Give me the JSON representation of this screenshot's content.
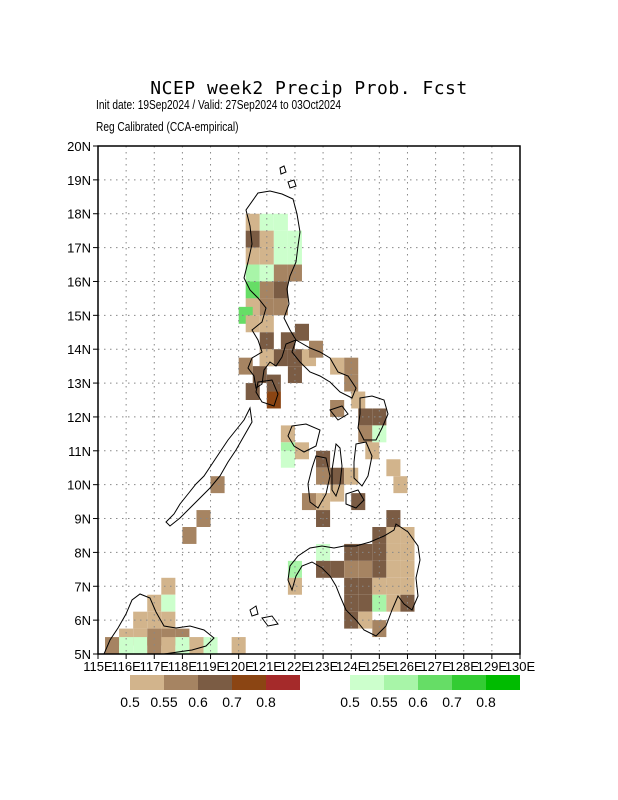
{
  "header": {
    "title": "NCEP week2 Precip Prob. Fcst",
    "subtitle1": "Init date: 19Sep2024 / Valid: 27Sep2024 to 03Oct2024",
    "subtitle2": "Reg Calibrated (CCA-empirical)"
  },
  "map": {
    "lon_range": [
      115,
      130
    ],
    "lat_range": [
      5,
      20
    ],
    "grid_step_deg": 1,
    "grid": "dotted",
    "y_ticks": [
      "5N",
      "6N",
      "7N",
      "8N",
      "9N",
      "10N",
      "11N",
      "12N",
      "13N",
      "14N",
      "15N",
      "16N",
      "17N",
      "18N",
      "19N",
      "20N"
    ],
    "x_ticks": [
      "115E",
      "116E",
      "117E",
      "118E",
      "119E",
      "120E",
      "121E",
      "122E",
      "123E",
      "124E",
      "125E",
      "126E",
      "127E",
      "128E",
      "129E",
      "130E"
    ]
  },
  "legend": {
    "dry": {
      "colors": [
        "#d2b48c",
        "#a68462",
        "#7b5c44",
        "#8b4513",
        "#a52a2a"
      ],
      "labels": [
        "0.5",
        "0.55",
        "0.6",
        "0.7",
        "0.8"
      ]
    },
    "wet": {
      "colors": [
        "#ccffcc",
        "#a8f5a8",
        "#66dd66",
        "#33cc33",
        "#00bb00"
      ],
      "labels": [
        "0.5",
        "0.55",
        "0.6",
        "0.7",
        "0.8"
      ]
    }
  },
  "cells": [
    {
      "lon": 120.5,
      "lat": 17.75,
      "c": "#d2b48c"
    },
    {
      "lon": 120.5,
      "lat": 17.25,
      "c": "#7b5c44"
    },
    {
      "lon": 120.5,
      "lat": 16.75,
      "c": "#d2b48c"
    },
    {
      "lon": 120.5,
      "lat": 16.25,
      "c": "#a8f5a8"
    },
    {
      "lon": 120.5,
      "lat": 15.75,
      "c": "#66dd66"
    },
    {
      "lon": 120.5,
      "lat": 15.25,
      "c": "#d2b48c"
    },
    {
      "lon": 120.25,
      "lat": 15.0,
      "c": "#66dd66"
    },
    {
      "lon": 120.5,
      "lat": 14.75,
      "c": "#d2b48c"
    },
    {
      "lon": 121.0,
      "lat": 17.75,
      "c": "#ccffcc"
    },
    {
      "lon": 121.0,
      "lat": 17.25,
      "c": "#d2b48c"
    },
    {
      "lon": 121.0,
      "lat": 16.75,
      "c": "#d2b48c"
    },
    {
      "lon": 121.0,
      "lat": 16.25,
      "c": "#ccffcc"
    },
    {
      "lon": 121.0,
      "lat": 15.75,
      "c": "#a68462"
    },
    {
      "lon": 121.0,
      "lat": 15.25,
      "c": "#a68462"
    },
    {
      "lon": 121.0,
      "lat": 14.75,
      "c": "#d2b48c"
    },
    {
      "lon": 121.0,
      "lat": 14.25,
      "c": "#7b5c44"
    },
    {
      "lon": 121.5,
      "lat": 17.75,
      "c": "#ccffcc"
    },
    {
      "lon": 121.5,
      "lat": 17.25,
      "c": "#ccffcc"
    },
    {
      "lon": 121.5,
      "lat": 16.75,
      "c": "#ccffcc"
    },
    {
      "lon": 121.5,
      "lat": 16.25,
      "c": "#a68462"
    },
    {
      "lon": 121.5,
      "lat": 15.75,
      "c": "#7b5c44"
    },
    {
      "lon": 121.5,
      "lat": 15.25,
      "c": "#a68462"
    },
    {
      "lon": 122.0,
      "lat": 17.25,
      "c": "#ccffcc"
    },
    {
      "lon": 122.0,
      "lat": 16.75,
      "c": "#ccffcc"
    },
    {
      "lon": 122.0,
      "lat": 16.25,
      "c": "#a68462"
    },
    {
      "lon": 121.0,
      "lat": 13.75,
      "c": "#7b5c44"
    },
    {
      "lon": 121.5,
      "lat": 13.75,
      "c": "#7b5c44"
    },
    {
      "lon": 122.0,
      "lat": 13.75,
      "c": "#7b5c44"
    },
    {
      "lon": 121.75,
      "lat": 14.25,
      "c": "#7b5c44"
    },
    {
      "lon": 122.25,
      "lat": 14.5,
      "c": "#7b5c44"
    },
    {
      "lon": 120.25,
      "lat": 13.5,
      "c": "#a68462"
    },
    {
      "lon": 120.75,
      "lat": 13.25,
      "c": "#7b5c44"
    },
    {
      "lon": 120.5,
      "lat": 12.75,
      "c": "#7b5c44"
    },
    {
      "lon": 121.25,
      "lat": 13.0,
      "c": "#7b5c44"
    },
    {
      "lon": 121.25,
      "lat": 12.5,
      "c": "#8b4513"
    },
    {
      "lon": 121.0,
      "lat": 13.75,
      "c": "#d2b48c"
    },
    {
      "lon": 122.0,
      "lat": 13.25,
      "c": "#7b5c44"
    },
    {
      "lon": 122.5,
      "lat": 13.75,
      "c": "#d2b48c"
    },
    {
      "lon": 122.75,
      "lat": 14.0,
      "c": "#a68462"
    },
    {
      "lon": 123.5,
      "lat": 13.5,
      "c": "#d2b48c"
    },
    {
      "lon": 124.0,
      "lat": 13.5,
      "c": "#a68462"
    },
    {
      "lon": 124.0,
      "lat": 13.0,
      "c": "#a68462"
    },
    {
      "lon": 123.5,
      "lat": 12.25,
      "c": "#a68462"
    },
    {
      "lon": 124.25,
      "lat": 12.5,
      "c": "#d2b48c"
    },
    {
      "lon": 124.5,
      "lat": 12.0,
      "c": "#7b5c44"
    },
    {
      "lon": 125.0,
      "lat": 12.0,
      "c": "#7b5c44"
    },
    {
      "lon": 124.5,
      "lat": 11.5,
      "c": "#a68462"
    },
    {
      "lon": 125.0,
      "lat": 11.5,
      "c": "#ccffcc"
    },
    {
      "lon": 124.75,
      "lat": 11.0,
      "c": "#d2b48c"
    },
    {
      "lon": 121.75,
      "lat": 11.5,
      "c": "#d2b48c"
    },
    {
      "lon": 121.75,
      "lat": 11.0,
      "c": "#a8f5a8"
    },
    {
      "lon": 122.25,
      "lat": 11.0,
      "c": "#d2b48c"
    },
    {
      "lon": 121.75,
      "lat": 10.75,
      "c": "#ccffcc"
    },
    {
      "lon": 123.0,
      "lat": 10.75,
      "c": "#7b5c44"
    },
    {
      "lon": 123.5,
      "lat": 10.25,
      "c": "#7b5c44"
    },
    {
      "lon": 123.0,
      "lat": 10.25,
      "c": "#a68462"
    },
    {
      "lon": 124.0,
      "lat": 10.25,
      "c": "#d2b48c"
    },
    {
      "lon": 122.5,
      "lat": 9.5,
      "c": "#a68462"
    },
    {
      "lon": 123.0,
      "lat": 9.5,
      "c": "#d2b48c"
    },
    {
      "lon": 123.5,
      "lat": 9.75,
      "c": "#d2b48c"
    },
    {
      "lon": 124.25,
      "lat": 9.5,
      "c": "#7b5c44"
    },
    {
      "lon": 123.0,
      "lat": 9.0,
      "c": "#7b5c44"
    },
    {
      "lon": 125.5,
      "lat": 10.5,
      "c": "#d2b48c"
    },
    {
      "lon": 125.75,
      "lat": 10.0,
      "c": "#d2b48c"
    },
    {
      "lon": 119.25,
      "lat": 10.0,
      "c": "#a68462"
    },
    {
      "lon": 118.75,
      "lat": 9.0,
      "c": "#a68462"
    },
    {
      "lon": 118.25,
      "lat": 8.5,
      "c": "#a68462"
    },
    {
      "lon": 125.5,
      "lat": 9.0,
      "c": "#7b5c44"
    },
    {
      "lon": 125.0,
      "lat": 8.5,
      "c": "#7b5c44"
    },
    {
      "lon": 125.5,
      "lat": 8.5,
      "c": "#d2b48c"
    },
    {
      "lon": 126.0,
      "lat": 8.5,
      "c": "#d2b48c"
    },
    {
      "lon": 124.0,
      "lat": 8.0,
      "c": "#7b5c44"
    },
    {
      "lon": 124.5,
      "lat": 8.0,
      "c": "#7b5c44"
    },
    {
      "lon": 125.0,
      "lat": 8.0,
      "c": "#7b5c44"
    },
    {
      "lon": 125.5,
      "lat": 8.0,
      "c": "#d2b48c"
    },
    {
      "lon": 126.0,
      "lat": 8.0,
      "c": "#d2b48c"
    },
    {
      "lon": 123.0,
      "lat": 8.0,
      "c": "#ccffcc"
    },
    {
      "lon": 123.5,
      "lat": 7.5,
      "c": "#7b5c44"
    },
    {
      "lon": 123.0,
      "lat": 7.5,
      "c": "#7b5c44"
    },
    {
      "lon": 124.0,
      "lat": 7.5,
      "c": "#a68462"
    },
    {
      "lon": 124.5,
      "lat": 7.5,
      "c": "#a68462"
    },
    {
      "lon": 125.0,
      "lat": 7.5,
      "c": "#7b5c44"
    },
    {
      "lon": 125.5,
      "lat": 7.5,
      "c": "#d2b48c"
    },
    {
      "lon": 126.0,
      "lat": 7.5,
      "c": "#d2b48c"
    },
    {
      "lon": 122.0,
      "lat": 7.5,
      "c": "#a8f5a8"
    },
    {
      "lon": 122.0,
      "lat": 7.0,
      "c": "#d2b48c"
    },
    {
      "lon": 124.0,
      "lat": 7.0,
      "c": "#7b5c44"
    },
    {
      "lon": 124.5,
      "lat": 7.0,
      "c": "#7b5c44"
    },
    {
      "lon": 125.0,
      "lat": 7.0,
      "c": "#d2b48c"
    },
    {
      "lon": 125.5,
      "lat": 7.0,
      "c": "#d2b48c"
    },
    {
      "lon": 126.0,
      "lat": 7.0,
      "c": "#d2b48c"
    },
    {
      "lon": 124.0,
      "lat": 6.5,
      "c": "#7b5c44"
    },
    {
      "lon": 124.5,
      "lat": 6.5,
      "c": "#7b5c44"
    },
    {
      "lon": 125.0,
      "lat": 6.5,
      "c": "#a8f5a8"
    },
    {
      "lon": 125.5,
      "lat": 6.5,
      "c": "#d2b48c"
    },
    {
      "lon": 126.0,
      "lat": 6.5,
      "c": "#7b5c44"
    },
    {
      "lon": 124.0,
      "lat": 6.0,
      "c": "#7b5c44"
    },
    {
      "lon": 124.5,
      "lat": 6.0,
      "c": "#d2b48c"
    },
    {
      "lon": 125.0,
      "lat": 5.75,
      "c": "#a68462"
    },
    {
      "lon": 117.5,
      "lat": 7.0,
      "c": "#d2b48c"
    },
    {
      "lon": 117.0,
      "lat": 6.5,
      "c": "#d2b48c"
    },
    {
      "lon": 117.5,
      "lat": 6.5,
      "c": "#ccffcc"
    },
    {
      "lon": 116.5,
      "lat": 6.0,
      "c": "#d2b48c"
    },
    {
      "lon": 117.0,
      "lat": 6.0,
      "c": "#d2b48c"
    },
    {
      "lon": 117.5,
      "lat": 6.0,
      "c": "#d2b48c"
    },
    {
      "lon": 116.0,
      "lat": 5.5,
      "c": "#d2b48c"
    },
    {
      "lon": 116.5,
      "lat": 5.5,
      "c": "#d2b48c"
    },
    {
      "lon": 117.0,
      "lat": 5.5,
      "c": "#a68462"
    },
    {
      "lon": 117.5,
      "lat": 5.5,
      "c": "#a68462"
    },
    {
      "lon": 118.0,
      "lat": 5.5,
      "c": "#a68462"
    },
    {
      "lon": 115.5,
      "lat": 5.25,
      "c": "#a68462"
    },
    {
      "lon": 116.0,
      "lat": 5.25,
      "c": "#ccffcc"
    },
    {
      "lon": 116.5,
      "lat": 5.25,
      "c": "#ccffcc"
    },
    {
      "lon": 117.0,
      "lat": 5.25,
      "c": "#a68462"
    },
    {
      "lon": 117.5,
      "lat": 5.25,
      "c": "#d2b48c"
    },
    {
      "lon": 118.0,
      "lat": 5.25,
      "c": "#ccffcc"
    },
    {
      "lon": 118.5,
      "lat": 5.25,
      "c": "#d2b48c"
    },
    {
      "lon": 119.0,
      "lat": 5.25,
      "c": "#ccffcc"
    },
    {
      "lon": 120.0,
      "lat": 5.25,
      "c": "#d2b48c"
    }
  ]
}
